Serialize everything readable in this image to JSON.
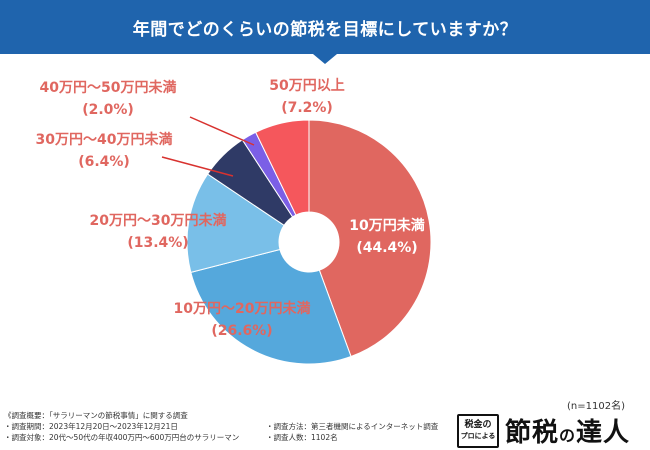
{
  "header": {
    "title": "年間でどのくらいの節税を目標にしていますか？"
  },
  "chart_data": {
    "type": "pie",
    "title": "年間でどのくらいの節税を目標にしていますか？",
    "donut": true,
    "sample_size_label": "(n=1102名)",
    "slices": [
      {
        "label": "10万円未満",
        "value": 44.4,
        "value_label": "(44.4%)",
        "color": "#e06760",
        "label_color": "#ffffff"
      },
      {
        "label": "10万円～20万円未満",
        "value": 26.6,
        "value_label": "(26.6%)",
        "color": "#55a8dc",
        "label_color": "#e06760"
      },
      {
        "label": "20万円～30万円未満",
        "value": 13.4,
        "value_label": "(13.4%)",
        "color": "#79bfe8",
        "label_color": "#e06760"
      },
      {
        "label": "30万円～40万円未満",
        "value": 6.4,
        "value_label": "(6.4%)",
        "color": "#2f3a66",
        "label_color": "#e06760"
      },
      {
        "label": "40万円～50万円未満",
        "value": 2.0,
        "value_label": "(2.0%)",
        "color": "#7b5fe6",
        "label_color": "#e06760"
      },
      {
        "label": "50万円以上",
        "value": 7.2,
        "value_label": "(7.2%)",
        "color": "#f5575c",
        "label_color": "#e06760"
      }
    ]
  },
  "footnotes": {
    "overview": "《調査概要：「サラリーマンの節税事情」に関する調査",
    "period": "・調査期間：2023年12月20日～2023年12月21日",
    "method": "・調査方法：第三者機関によるインターネット調査",
    "target": "・調査対象：20代～50代の年収400万円～600万円台のサラリーマン",
    "count": "・調査人数：1102名"
  },
  "logo": {
    "box_line1": "税金の",
    "box_line2": "プロによる",
    "main_a": "節税",
    "main_b": "の",
    "main_c": "達人"
  }
}
